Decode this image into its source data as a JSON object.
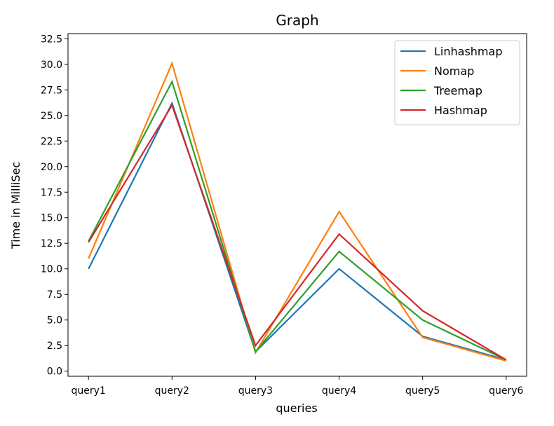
{
  "chart_data": {
    "type": "line",
    "title": "Graph",
    "xlabel": "queries",
    "ylabel": "Time in MilliSec",
    "categories": [
      "query1",
      "query2",
      "query3",
      "query4",
      "query5",
      "query6"
    ],
    "ylim": [
      -0.5,
      33.0
    ],
    "yticks": [
      "0.0",
      "2.5",
      "5.0",
      "7.5",
      "10.0",
      "12.5",
      "15.0",
      "17.5",
      "20.0",
      "22.5",
      "25.0",
      "27.5",
      "30.0",
      "32.5"
    ],
    "grid": false,
    "legend_position": "top-right",
    "series": [
      {
        "name": "Linhashmap",
        "color": "#1f77b4",
        "values": [
          10.0,
          26.2,
          1.9,
          10.0,
          3.4,
          1.1
        ]
      },
      {
        "name": "Nomap",
        "color": "#ff7f0e",
        "values": [
          11.0,
          30.1,
          1.8,
          15.6,
          3.3,
          1.0
        ]
      },
      {
        "name": "Treemap",
        "color": "#2ca02c",
        "values": [
          12.7,
          28.3,
          1.9,
          11.7,
          5.0,
          1.1
        ]
      },
      {
        "name": "Hashmap",
        "color": "#d62728",
        "values": [
          12.6,
          26.0,
          2.5,
          13.4,
          5.9,
          1.1
        ]
      }
    ]
  }
}
